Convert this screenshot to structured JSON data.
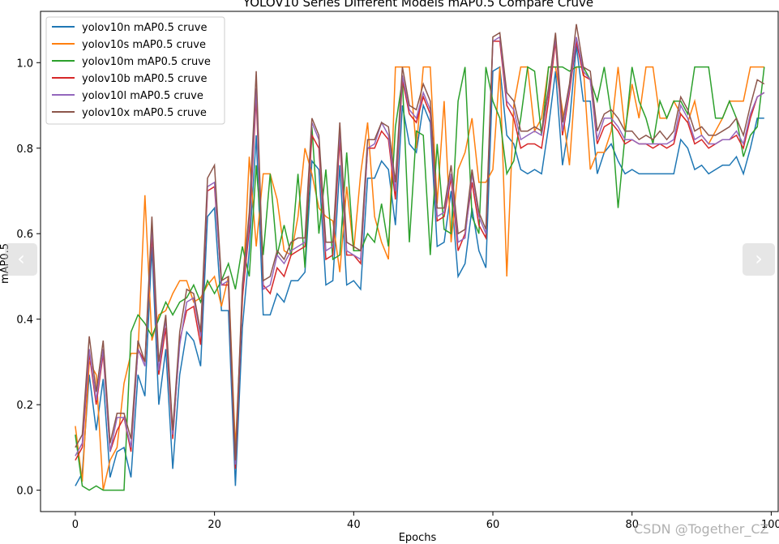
{
  "chart_data": {
    "type": "line",
    "title": "YOLOV10 Series Different Models mAP0.5 Compare Cruve",
    "xlabel": "Epochs",
    "ylabel": "mAP0.5",
    "xlim": [
      -5,
      101
    ],
    "ylim": [
      -0.05,
      1.12
    ],
    "x_ticks": [
      0,
      20,
      40,
      60,
      80,
      100
    ],
    "y_ticks": [
      0.0,
      0.2,
      0.4,
      0.6,
      0.8,
      1.0
    ],
    "x_tick_labels": [
      "0",
      "20",
      "40",
      "60",
      "80",
      "100"
    ],
    "y_tick_labels": [
      "0.0",
      "0.2",
      "0.4",
      "0.6",
      "0.8",
      "1.0"
    ],
    "legend_position": "top-left",
    "grid": false,
    "x": [
      0,
      1,
      2,
      3,
      4,
      5,
      6,
      7,
      8,
      9,
      10,
      11,
      12,
      13,
      14,
      15,
      16,
      17,
      18,
      19,
      20,
      21,
      22,
      23,
      24,
      25,
      26,
      27,
      28,
      29,
      30,
      31,
      32,
      33,
      34,
      35,
      36,
      37,
      38,
      39,
      40,
      41,
      42,
      43,
      44,
      45,
      46,
      47,
      48,
      49,
      50,
      51,
      52,
      53,
      54,
      55,
      56,
      57,
      58,
      59,
      60,
      61,
      62,
      63,
      64,
      65,
      66,
      67,
      68,
      69,
      70,
      71,
      72,
      73,
      74,
      75,
      76,
      77,
      78,
      79,
      80,
      81,
      82,
      83,
      84,
      85,
      86,
      87,
      88,
      89,
      90,
      91,
      92,
      93,
      94,
      95,
      96,
      97,
      98,
      99
    ],
    "series": [
      {
        "name": "yolov10n mAP0.5 cruve",
        "color": "#1f77b4",
        "values": [
          0.01,
          0.04,
          0.27,
          0.14,
          0.26,
          0.03,
          0.09,
          0.1,
          0.03,
          0.27,
          0.22,
          0.57,
          0.2,
          0.33,
          0.05,
          0.27,
          0.37,
          0.35,
          0.29,
          0.64,
          0.66,
          0.42,
          0.42,
          0.01,
          0.38,
          0.56,
          0.83,
          0.41,
          0.41,
          0.46,
          0.44,
          0.49,
          0.49,
          0.51,
          0.77,
          0.75,
          0.48,
          0.49,
          0.76,
          0.48,
          0.49,
          0.47,
          0.73,
          0.73,
          0.77,
          0.75,
          0.62,
          0.9,
          0.81,
          0.79,
          0.9,
          0.86,
          0.57,
          0.58,
          0.7,
          0.5,
          0.53,
          0.66,
          0.56,
          0.52,
          0.98,
          0.99,
          0.83,
          0.81,
          0.75,
          0.74,
          0.75,
          0.74,
          0.85,
          0.98,
          0.76,
          0.86,
          1.04,
          0.91,
          0.91,
          0.74,
          0.79,
          0.81,
          0.77,
          0.74,
          0.75,
          0.74,
          0.74,
          0.74,
          0.74,
          0.74,
          0.74,
          0.82,
          0.8,
          0.75,
          0.76,
          0.74,
          0.75,
          0.76,
          0.76,
          0.78,
          0.74,
          0.8,
          0.87,
          0.87
        ]
      },
      {
        "name": "yolov10s mAP0.5 cruve",
        "color": "#ff7f0e",
        "values": [
          0.15,
          0.02,
          0.3,
          0.27,
          0.0,
          0.07,
          0.1,
          0.25,
          0.32,
          0.32,
          0.69,
          0.35,
          0.41,
          0.42,
          0.46,
          0.49,
          0.49,
          0.44,
          0.45,
          0.48,
          0.5,
          0.43,
          0.5,
          0.1,
          0.44,
          0.78,
          0.57,
          0.74,
          0.74,
          0.68,
          0.56,
          0.55,
          0.64,
          0.8,
          0.74,
          0.66,
          0.64,
          0.63,
          0.51,
          0.71,
          0.56,
          0.74,
          0.86,
          0.64,
          0.58,
          0.54,
          0.99,
          0.99,
          0.99,
          0.8,
          0.99,
          0.99,
          0.67,
          0.91,
          0.58,
          0.75,
          0.79,
          0.87,
          0.72,
          0.72,
          0.75,
          0.99,
          0.5,
          0.9,
          0.99,
          0.99,
          0.84,
          0.87,
          0.99,
          0.99,
          0.89,
          0.76,
          0.99,
          0.99,
          0.75,
          0.79,
          0.79,
          0.84,
          0.99,
          0.84,
          0.95,
          0.87,
          0.99,
          0.99,
          0.87,
          0.87,
          0.91,
          0.88,
          0.86,
          0.91,
          0.83,
          0.81,
          0.84,
          0.87,
          0.91,
          0.91,
          0.91,
          0.99,
          0.99,
          0.99
        ]
      },
      {
        "name": "yolov10m mAP0.5 cruve",
        "color": "#2ca02c",
        "values": [
          0.13,
          0.01,
          0.0,
          0.01,
          0.0,
          0.0,
          0.0,
          0.0,
          0.37,
          0.41,
          0.39,
          0.36,
          0.4,
          0.44,
          0.41,
          0.44,
          0.45,
          0.48,
          0.44,
          0.49,
          0.46,
          0.49,
          0.53,
          0.47,
          0.57,
          0.5,
          0.76,
          0.55,
          0.74,
          0.55,
          0.62,
          0.55,
          0.74,
          0.52,
          0.85,
          0.6,
          0.75,
          0.54,
          0.55,
          0.79,
          0.56,
          0.56,
          0.6,
          0.58,
          0.67,
          0.57,
          0.85,
          0.96,
          0.58,
          0.84,
          0.83,
          0.55,
          0.81,
          0.61,
          0.6,
          0.91,
          0.99,
          0.64,
          0.6,
          0.99,
          0.91,
          0.87,
          0.74,
          0.77,
          0.87,
          0.99,
          0.98,
          0.83,
          0.99,
          0.99,
          0.99,
          0.98,
          0.99,
          0.99,
          0.96,
          0.91,
          0.99,
          0.88,
          0.66,
          0.83,
          0.99,
          0.91,
          0.87,
          0.81,
          0.91,
          0.87,
          0.91,
          0.91,
          0.88,
          0.99,
          0.99,
          0.99,
          0.87,
          0.87,
          0.91,
          0.87,
          0.78,
          0.83,
          0.85,
          0.99
        ]
      },
      {
        "name": "yolov10b mAP0.5 cruve",
        "color": "#d62728",
        "values": [
          0.07,
          0.1,
          0.32,
          0.2,
          0.32,
          0.09,
          0.14,
          0.17,
          0.09,
          0.33,
          0.3,
          0.6,
          0.27,
          0.38,
          0.12,
          0.35,
          0.42,
          0.43,
          0.34,
          0.7,
          0.71,
          0.48,
          0.48,
          0.05,
          0.45,
          0.61,
          0.92,
          0.48,
          0.46,
          0.52,
          0.5,
          0.55,
          0.56,
          0.57,
          0.83,
          0.8,
          0.54,
          0.55,
          0.82,
          0.55,
          0.55,
          0.53,
          0.8,
          0.8,
          0.84,
          0.82,
          0.68,
          0.96,
          0.88,
          0.86,
          0.92,
          0.88,
          0.63,
          0.64,
          0.73,
          0.56,
          0.6,
          0.72,
          0.62,
          0.59,
          1.05,
          1.05,
          0.9,
          0.87,
          0.8,
          0.81,
          0.81,
          0.8,
          0.91,
          1.05,
          0.83,
          0.93,
          1.05,
          0.97,
          0.96,
          0.81,
          0.85,
          0.86,
          0.84,
          0.81,
          0.82,
          0.81,
          0.81,
          0.8,
          0.81,
          0.8,
          0.81,
          0.88,
          0.86,
          0.81,
          0.82,
          0.8,
          0.81,
          0.82,
          0.82,
          0.83,
          0.8,
          0.87,
          0.92,
          0.93
        ]
      },
      {
        "name": "yolov10l mAP0.5 cruve",
        "color": "#9467bd",
        "values": [
          0.08,
          0.11,
          0.33,
          0.21,
          0.33,
          0.09,
          0.17,
          0.17,
          0.1,
          0.33,
          0.29,
          0.62,
          0.28,
          0.4,
          0.13,
          0.34,
          0.44,
          0.45,
          0.36,
          0.71,
          0.72,
          0.48,
          0.49,
          0.06,
          0.47,
          0.63,
          0.94,
          0.47,
          0.48,
          0.55,
          0.53,
          0.56,
          0.57,
          0.58,
          0.86,
          0.82,
          0.56,
          0.57,
          0.84,
          0.56,
          0.55,
          0.54,
          0.8,
          0.81,
          0.86,
          0.83,
          0.7,
          0.97,
          0.89,
          0.87,
          0.93,
          0.89,
          0.64,
          0.65,
          0.74,
          0.58,
          0.59,
          0.74,
          0.64,
          0.6,
          1.05,
          1.06,
          0.91,
          0.89,
          0.82,
          0.83,
          0.84,
          0.83,
          0.93,
          1.06,
          0.84,
          0.94,
          1.06,
          0.98,
          0.96,
          0.82,
          0.87,
          0.87,
          0.85,
          0.82,
          0.82,
          0.81,
          0.81,
          0.81,
          0.81,
          0.81,
          0.82,
          0.9,
          0.87,
          0.82,
          0.83,
          0.81,
          0.81,
          0.82,
          0.82,
          0.84,
          0.81,
          0.88,
          0.92,
          0.93
        ]
      },
      {
        "name": "yolov10x mAP0.5 cruve",
        "color": "#8c564b",
        "values": [
          0.1,
          0.13,
          0.36,
          0.23,
          0.35,
          0.11,
          0.18,
          0.18,
          0.12,
          0.35,
          0.3,
          0.64,
          0.3,
          0.41,
          0.14,
          0.37,
          0.47,
          0.46,
          0.37,
          0.73,
          0.76,
          0.49,
          0.5,
          0.07,
          0.48,
          0.65,
          0.98,
          0.49,
          0.5,
          0.56,
          0.54,
          0.58,
          0.59,
          0.59,
          0.87,
          0.83,
          0.58,
          0.58,
          0.86,
          0.58,
          0.57,
          0.56,
          0.82,
          0.82,
          0.86,
          0.85,
          0.72,
          0.99,
          0.9,
          0.89,
          0.95,
          0.91,
          0.66,
          0.66,
          0.76,
          0.6,
          0.61,
          0.75,
          0.65,
          0.61,
          1.06,
          1.07,
          0.93,
          0.91,
          0.84,
          0.84,
          0.85,
          0.84,
          0.94,
          1.07,
          0.86,
          0.95,
          1.09,
          0.99,
          0.98,
          0.84,
          0.88,
          0.89,
          0.87,
          0.84,
          0.84,
          0.82,
          0.83,
          0.82,
          0.84,
          0.82,
          0.84,
          0.92,
          0.89,
          0.84,
          0.85,
          0.83,
          0.83,
          0.84,
          0.85,
          0.87,
          0.83,
          0.9,
          0.96,
          0.95
        ]
      }
    ]
  },
  "nav": {
    "prev_icon": "‹",
    "next_icon": "›"
  },
  "watermark": "CSDN @Together_CZ"
}
